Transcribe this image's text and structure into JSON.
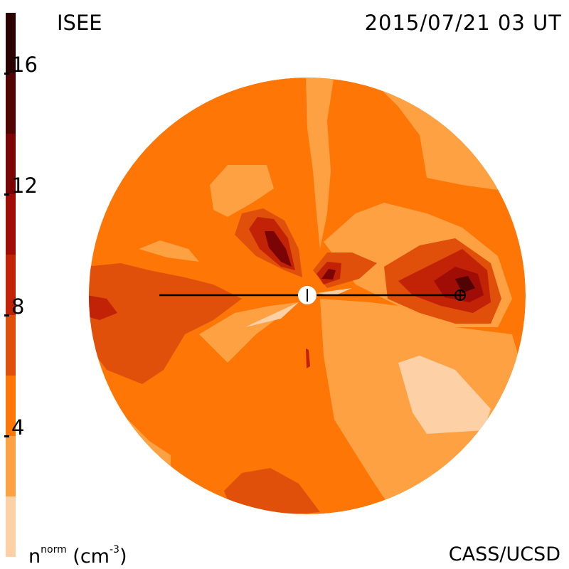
{
  "header": {
    "title_left": "ISEE",
    "title_right": "2015/07/21 03 UT"
  },
  "footer": {
    "credit": "CASS/UCSD",
    "unit_base": "n",
    "unit_sup": "norm",
    "unit_tail": " (cm",
    "unit_exp": "-3",
    "unit_close": ")"
  },
  "colorbar": {
    "ticks": [
      "4",
      "8",
      "12",
      "16"
    ],
    "range": [
      0,
      18
    ],
    "levels": [
      {
        "from": 0,
        "to": 2,
        "color": "#fdd0a6"
      },
      {
        "from": 2,
        "to": 4,
        "color": "#fea142"
      },
      {
        "from": 4,
        "to": 6,
        "color": "#fd7606"
      },
      {
        "from": 6,
        "to": 8,
        "color": "#e0500a"
      },
      {
        "from": 8,
        "to": 10,
        "color": "#c22206"
      },
      {
        "from": 10,
        "to": 12,
        "color": "#a00d06"
      },
      {
        "from": 12,
        "to": 14,
        "color": "#7b0506"
      },
      {
        "from": 14,
        "to": 16,
        "color": "#520303"
      },
      {
        "from": 16,
        "to": 18,
        "color": "#2a0202"
      }
    ]
  },
  "map": {
    "background_color": "#fd7606",
    "markers": [
      "sun-marker",
      "earth-marker"
    ]
  }
}
